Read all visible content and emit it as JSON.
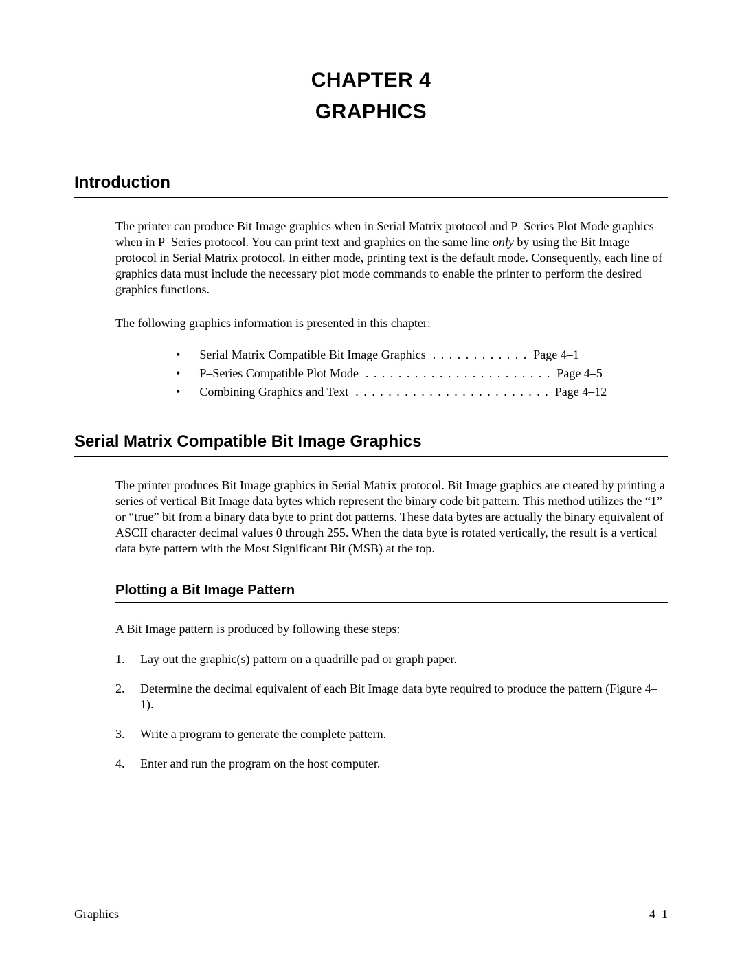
{
  "chapter": {
    "line1": "CHAPTER 4",
    "line2": "GRAPHICS"
  },
  "intro": {
    "heading": "Introduction",
    "para1_a": "The printer can produce Bit Image graphics when in Serial Matrix protocol and P–Series Plot Mode graphics when in P–Series protocol. You can print text and graphics on the same line ",
    "para1_italic": "only",
    "para1_b": " by using the Bit Image protocol in Serial Matrix protocol. In either mode, printing text is the default mode. Consequently, each line of graphics data must include the necessary plot mode commands to enable the printer to perform the desired graphics functions.",
    "para2": "The following graphics information is presented in this chapter:"
  },
  "toc": [
    {
      "label": "Serial Matrix Compatible Bit Image Graphics",
      "dots": " . . . . . . . . . . . .",
      "page": " Page 4–1"
    },
    {
      "label": "P–Series Compatible Plot Mode",
      "dots": " . . . . . . . . . . . . . . . . . . . . . . .",
      "page": " Page 4–5"
    },
    {
      "label": "Combining Graphics and Text",
      "dots": " . . . . . . . . . . . . . . . . . . . . . . . .",
      "page": " Page 4–12"
    }
  ],
  "section2": {
    "heading": "Serial Matrix Compatible Bit Image Graphics",
    "para": "The printer produces Bit Image graphics in Serial Matrix protocol. Bit Image graphics are created by printing a series of vertical Bit Image data bytes which represent the binary code bit pattern. This method utilizes the “1” or “true” bit from a binary data byte to print dot patterns. These data bytes are actually the binary equivalent of ASCII character decimal values 0 through 255. When the data byte is rotated vertically, the result is a vertical data byte pattern with the Most Significant Bit (MSB) at the top."
  },
  "subsection": {
    "heading": "Plotting a Bit Image Pattern",
    "intro": "A Bit Image pattern is produced by following these steps:",
    "steps": [
      {
        "n": "1.",
        "text": "Lay out the graphic(s) pattern on a quadrille pad or graph paper."
      },
      {
        "n": "2.",
        "text": "Determine the decimal equivalent of each Bit Image data byte required to produce the pattern (Figure 4–1)."
      },
      {
        "n": "3.",
        "text": "Write a program to generate the complete pattern."
      },
      {
        "n": "4.",
        "text": "Enter and run the program on the host computer."
      }
    ]
  },
  "footer": {
    "left": "Graphics",
    "right": "4–1"
  }
}
